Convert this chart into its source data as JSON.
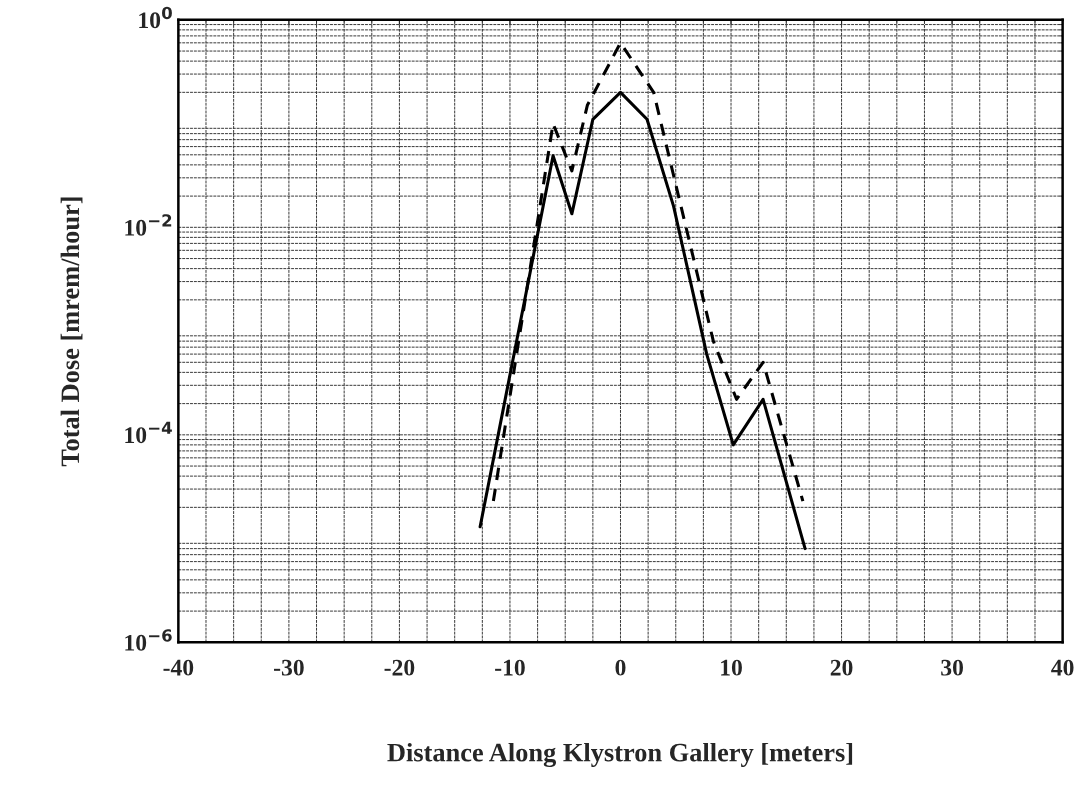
{
  "chart_data": {
    "type": "line",
    "xlabel": "Distance Along Klystron Gallery [meters]",
    "ylabel": "Total Dose [mrem/hour]",
    "log": "y",
    "grid": true,
    "xlim": [
      -40,
      40
    ],
    "xticks": [
      -40,
      -30,
      -20,
      -10,
      0,
      10,
      20,
      30,
      40
    ],
    "ylim": [
      1e-06,
      1
    ],
    "yticks": [
      {
        "value": 1,
        "label": "10$^{0}$"
      },
      {
        "value": 0.01,
        "label": "10$^{−2}$"
      },
      {
        "value": 0.0001,
        "label": "10$^{−4}$"
      },
      {
        "value": 1e-06,
        "label": "10$^{−6}$"
      }
    ],
    "series": [
      {
        "color": "#000000",
        "line_style": "solid",
        "x": [
          -12.7,
          -6.1,
          -4.4,
          -2.5,
          0,
          2.4,
          4.8,
          7.8,
          10.2,
          12.9,
          16.7
        ],
        "values": [
          1.3e-05,
          0.049,
          0.0135,
          0.11,
          0.2,
          0.11,
          0.016,
          0.0006,
          8e-05,
          0.00022,
          8e-06
        ]
      },
      {
        "color": "#000000",
        "line_style": "dashed",
        "x": [
          -11.5,
          -6.1,
          -4.4,
          -3,
          0,
          3,
          8.4,
          10.5,
          12.9,
          16.5
        ],
        "values": [
          2.3e-05,
          0.1,
          0.035,
          0.15,
          0.6,
          0.2,
          0.0008,
          0.00022,
          0.0005,
          2.3e-05
        ]
      }
    ]
  }
}
